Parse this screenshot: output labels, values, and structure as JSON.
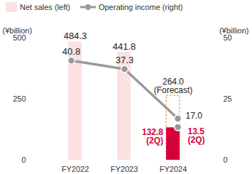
{
  "chart_data": {
    "type": "bar",
    "categories": [
      "FY2022",
      "FY2023",
      "FY2024"
    ],
    "ylabel": "(¥billion)",
    "y2label": "(¥billion)",
    "ylim": [
      0,
      500
    ],
    "yticks": [
      0,
      250,
      500
    ],
    "y2lim": [
      0,
      50
    ],
    "y2ticks": [
      0,
      25,
      50
    ],
    "legend": "top",
    "grid": false,
    "data_labels": true,
    "series": [
      {
        "name": "Net sales (left)",
        "type": "bar",
        "color": "#fbe1e0",
        "values": [
          484.3,
          441.8,
          null
        ]
      },
      {
        "type": "bar",
        "color": "#f2a24a",
        "line_style": "dashed",
        "values": [
          null,
          null,
          264.0
        ],
        "value_labels": [
          null,
          null,
          "264.0\n(Forecast)"
        ]
      },
      {
        "type": "bar",
        "color": "#d5003a",
        "values": [
          null,
          null,
          132.8
        ],
        "value_labels": [
          null,
          null,
          "132.8\n(2Q)"
        ]
      },
      {
        "name": "Operating income (right)",
        "type": "line",
        "axis": "y2",
        "color": "#999999",
        "marker": "circle",
        "values": [
          40.8,
          37.3,
          17.0
        ],
        "value_labels": [
          "40.8",
          "37.3",
          "17.0"
        ]
      },
      {
        "type": "scatter",
        "axis": "y2",
        "color": "#999999",
        "marker": "circle",
        "values": [
          null,
          null,
          13.5
        ],
        "value_labels": [
          null,
          null,
          "13.5\n(2Q)"
        ]
      }
    ]
  }
}
